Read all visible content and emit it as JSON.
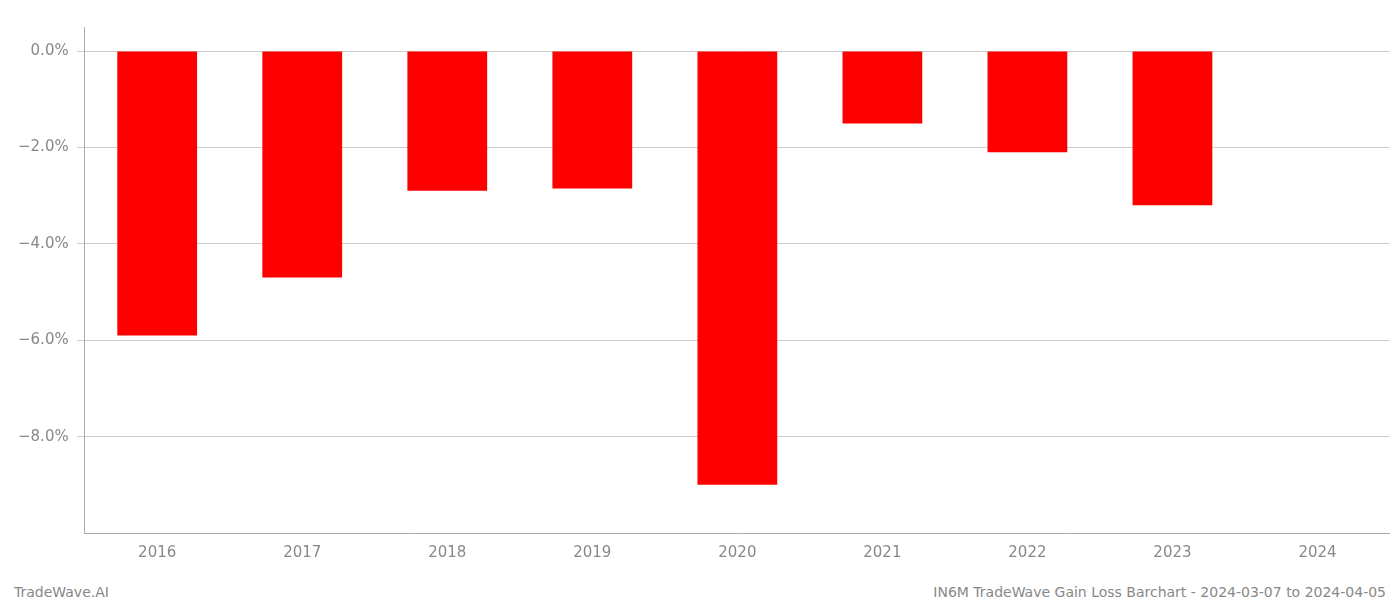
{
  "chart_data": {
    "type": "bar",
    "categories": [
      "2016",
      "2017",
      "2018",
      "2019",
      "2020",
      "2021",
      "2022",
      "2023",
      "2024"
    ],
    "values": [
      -5.9,
      -4.7,
      -2.9,
      -2.85,
      -9.0,
      -1.5,
      -2.1,
      -3.2,
      null
    ],
    "color": "#ff0000",
    "ylim": [
      -10.0,
      0.5
    ],
    "yticks": [
      {
        "value": 0.0,
        "label": "0.0%"
      },
      {
        "value": -2.0,
        "label": "−2.0%"
      },
      {
        "value": -4.0,
        "label": "−4.0%"
      },
      {
        "value": -6.0,
        "label": "−6.0%"
      },
      {
        "value": -8.0,
        "label": "−8.0%"
      }
    ],
    "grid": true,
    "annotations": [
      "TradeWave.AI",
      "IN6M TradeWave Gain Loss Barchart - 2024-03-07 to 2024-04-05"
    ]
  }
}
